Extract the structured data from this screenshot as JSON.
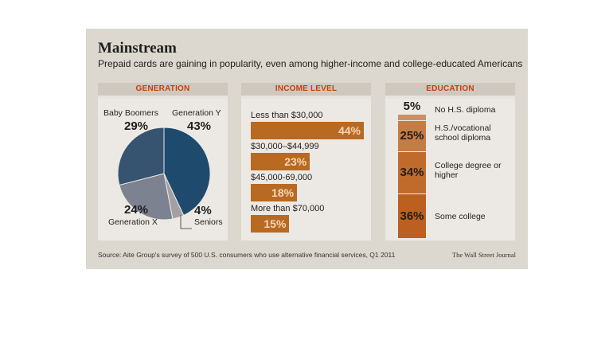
{
  "title": "Mainstream",
  "subtitle": "Prepaid cards are gaining in popularity, even among higher-income and college-educated Americans",
  "source": "Source: Aite Group's survey of 500 U.S. consumers who use alternative financial services, Q1 2011",
  "brand": "The Wall Street Journal",
  "colors": {
    "heading": "#c5400f",
    "pie_y": "#1e4a6e",
    "pie_boomers": "#36536f",
    "pie_x": "#7d8290",
    "pie_seniors": "#a3a0a5",
    "income_bar": "#b86a22",
    "edu_1": "#cc9066",
    "edu_2": "#c47c45",
    "edu_3": "#c06b2c",
    "edu_4": "#bb6020"
  },
  "chart_data": [
    {
      "type": "pie",
      "title": "GENERATION",
      "slices": [
        {
          "label": "Generation Y",
          "value": 43,
          "display": "43%"
        },
        {
          "label": "Seniors",
          "value": 4,
          "display": "4%"
        },
        {
          "label": "Generation X",
          "value": 24,
          "display": "24%"
        },
        {
          "label": "Baby Boomers",
          "value": 29,
          "display": "29%"
        }
      ]
    },
    {
      "type": "bar",
      "title": "INCOME LEVEL",
      "categories": [
        "Less than $30,000",
        "$30,000–$44,999",
        "$45,000-69,000",
        "More than $70,000"
      ],
      "values": [
        44,
        23,
        18,
        15
      ],
      "display": [
        "44%",
        "23%",
        "18%",
        "15%"
      ]
    },
    {
      "type": "bar",
      "title": "EDUCATION",
      "categories": [
        "No H.S. diploma",
        "H.S./vocational school diploma",
        "College degree or higher",
        "Some college"
      ],
      "values": [
        5,
        25,
        34,
        36
      ],
      "display": [
        "5%",
        "25%",
        "34%",
        "36%"
      ]
    }
  ]
}
